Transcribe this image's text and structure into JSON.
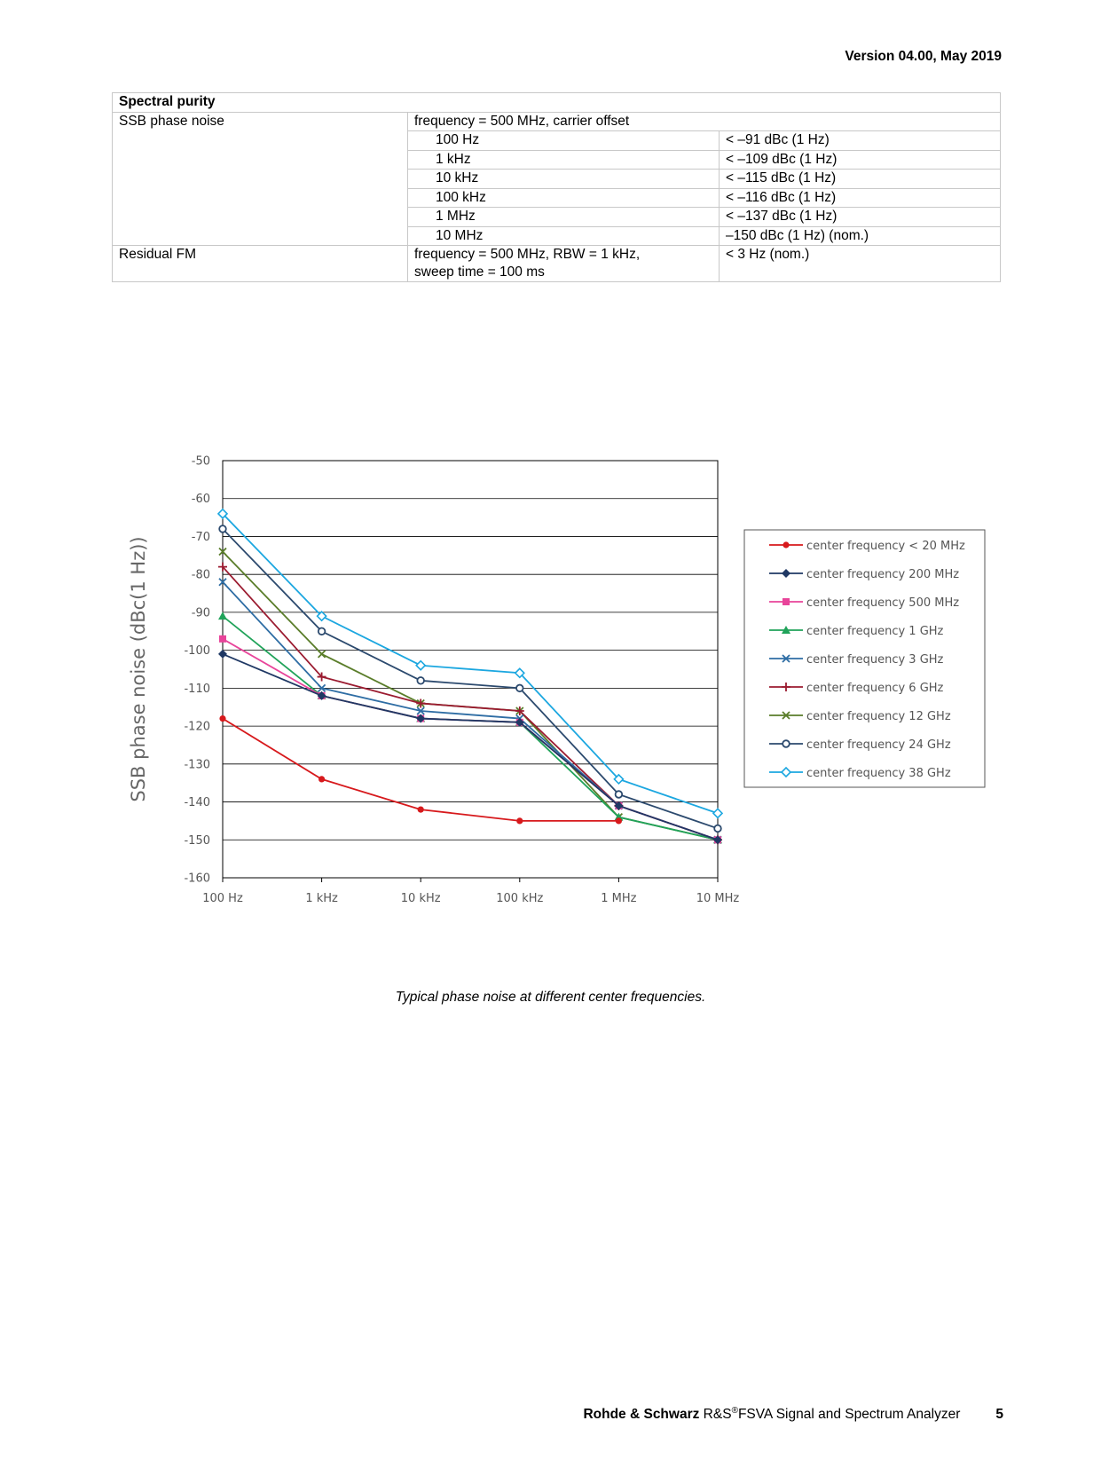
{
  "header": {
    "version": "Version 04.00, May 2019"
  },
  "spec_table": {
    "section": "Spectral purity",
    "ssb": {
      "label": "SSB phase noise",
      "condition": "frequency = 500 MHz, carrier offset",
      "rows": [
        {
          "offset": "100 Hz",
          "value": "< –91 dBc (1 Hz)"
        },
        {
          "offset": "1 kHz",
          "value": "< –109 dBc (1 Hz)"
        },
        {
          "offset": "10 kHz",
          "value": "< –115 dBc (1 Hz)"
        },
        {
          "offset": "100 kHz",
          "value": "< –116 dBc (1 Hz)"
        },
        {
          "offset": "1 MHz",
          "value": "< –137 dBc (1 Hz)"
        },
        {
          "offset": "10 MHz",
          "value": "–150 dBc (1 Hz) (nom.)"
        }
      ]
    },
    "residual": {
      "label": "Residual FM",
      "condition_line1": "frequency = 500 MHz, RBW = 1 kHz,",
      "condition_line2": "sweep time = 100 ms",
      "value": "< 3 Hz (nom.)"
    }
  },
  "chart_data": {
    "type": "line",
    "title": "",
    "xlabel": "",
    "ylabel": "SSB phase noise (dBc(1 Hz))",
    "x_scale": "log",
    "categories": [
      "100 Hz",
      "1 kHz",
      "10 kHz",
      "100 kHz",
      "1 MHz",
      "10 MHz"
    ],
    "ylim": [
      -160,
      -50
    ],
    "yticks": [
      -50,
      -60,
      -70,
      -80,
      -90,
      -100,
      -110,
      -120,
      -130,
      -140,
      -150,
      -160
    ],
    "grid": true,
    "legend_position": "right",
    "series": [
      {
        "name": "center frequency < 20 MHz",
        "color": "#d7191c",
        "marker": "circle",
        "values": [
          -118,
          -134,
          -142,
          -145,
          -145,
          null
        ]
      },
      {
        "name": "center frequency 200 MHz",
        "color": "#1f3864",
        "marker": "diamond",
        "values": [
          -101,
          -112,
          -118,
          -119,
          -141,
          -150
        ]
      },
      {
        "name": "center frequency 500 MHz",
        "color": "#e8449a",
        "marker": "square",
        "values": [
          -97,
          -112,
          -118,
          -119,
          -141,
          -150
        ]
      },
      {
        "name": "center frequency 1 GHz",
        "color": "#21a35a",
        "marker": "triangle",
        "values": [
          -91,
          -112,
          -118,
          -119,
          -144,
          -150
        ]
      },
      {
        "name": "center frequency 3 GHz",
        "color": "#2e6da4",
        "marker": "x",
        "values": [
          -82,
          -110,
          -116,
          -118,
          -141,
          -150
        ]
      },
      {
        "name": "center frequency 6 GHz",
        "color": "#9b1b30",
        "marker": "plus",
        "values": [
          -78,
          -107,
          -114,
          -116,
          -141,
          -150
        ]
      },
      {
        "name": "center frequency 12 GHz",
        "color": "#5a7d2a",
        "marker": "x",
        "values": [
          -74,
          -101,
          -114,
          -116,
          -144,
          -150
        ]
      },
      {
        "name": "center frequency 24 GHz",
        "color": "#2c4a6e",
        "marker": "open-circle",
        "values": [
          -68,
          -95,
          -108,
          -110,
          -138,
          -147
        ]
      },
      {
        "name": "center frequency 38 GHz",
        "color": "#1ca7e0",
        "marker": "open-diamond",
        "values": [
          -64,
          -91,
          -104,
          -106,
          -134,
          -143
        ]
      }
    ]
  },
  "caption": "Typical phase noise at different center frequencies.",
  "footer": {
    "company": "Rohde & Schwarz",
    "product_prefix": " R&S",
    "registered": "®",
    "product_name": "FSVA Signal and Spectrum Analyzer",
    "page_number": "5"
  }
}
